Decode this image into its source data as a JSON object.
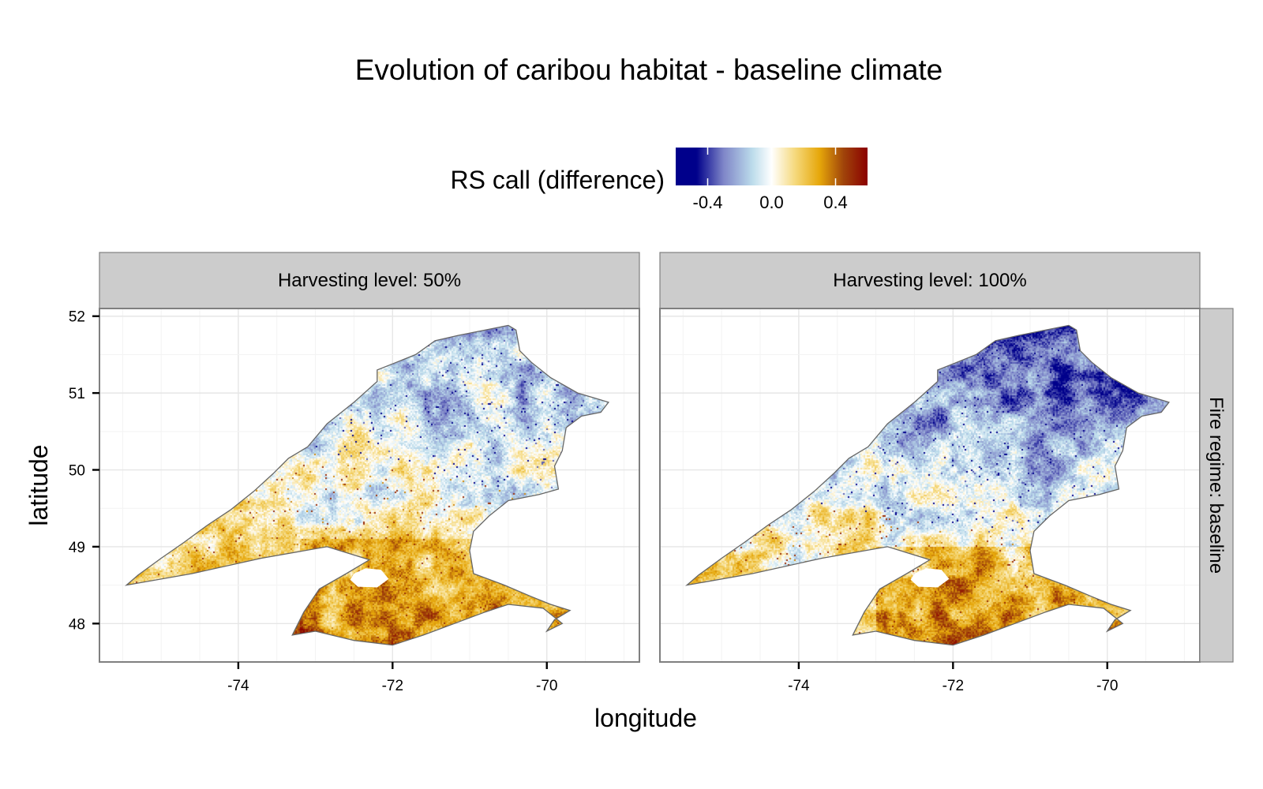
{
  "title": "Evolution of caribou habitat - baseline climate",
  "legend": {
    "title": "RS call (difference)",
    "ticks": [
      -0.4,
      0.0,
      0.4
    ],
    "tick_labels": [
      "-0.4",
      "0.0",
      "0.4"
    ],
    "range": [
      -0.6,
      0.6
    ],
    "stops": [
      {
        "v": -0.6,
        "color": "#00008b"
      },
      {
        "v": -0.47,
        "color": "#00008b"
      },
      {
        "v": -0.3,
        "color": "#7f86c8"
      },
      {
        "v": -0.12,
        "color": "#bcdceb"
      },
      {
        "v": 0.0,
        "color": "#ffffff"
      },
      {
        "v": 0.15,
        "color": "#f5d87a"
      },
      {
        "v": 0.3,
        "color": "#e6a70a"
      },
      {
        "v": 0.45,
        "color": "#a0440a"
      },
      {
        "v": 0.6,
        "color": "#8b0000"
      }
    ]
  },
  "axes": {
    "xlabel": "longitude",
    "ylabel": "latitude",
    "xlim": [
      -75.8,
      -68.8
    ],
    "ylim": [
      47.5,
      52.1
    ],
    "x_ticks": [
      -74,
      -72,
      -70
    ],
    "x_tick_labels": [
      "-74",
      "-72",
      "-70"
    ],
    "y_ticks": [
      48,
      49,
      50,
      51,
      52
    ],
    "y_tick_labels": [
      "48",
      "49",
      "50",
      "51",
      "52"
    ]
  },
  "facets": {
    "columns": [
      "Harvesting level: 50%",
      "Harvesting level: 100%"
    ],
    "row": "Fire regime: baseline"
  },
  "region_outline": [
    [
      -75.45,
      48.5
    ],
    [
      -75.3,
      48.63
    ],
    [
      -75.0,
      48.85
    ],
    [
      -74.7,
      49.06
    ],
    [
      -74.4,
      49.28
    ],
    [
      -74.1,
      49.48
    ],
    [
      -73.8,
      49.72
    ],
    [
      -73.55,
      49.95
    ],
    [
      -73.35,
      50.15
    ],
    [
      -73.1,
      50.3
    ],
    [
      -72.85,
      50.6
    ],
    [
      -72.5,
      50.88
    ],
    [
      -72.2,
      51.15
    ],
    [
      -72.2,
      51.3
    ],
    [
      -71.95,
      51.4
    ],
    [
      -71.7,
      51.5
    ],
    [
      -71.45,
      51.68
    ],
    [
      -71.15,
      51.75
    ],
    [
      -70.9,
      51.8
    ],
    [
      -70.5,
      51.88
    ],
    [
      -70.4,
      51.82
    ],
    [
      -70.35,
      51.55
    ],
    [
      -70.2,
      51.4
    ],
    [
      -69.95,
      51.2
    ],
    [
      -69.6,
      51.0
    ],
    [
      -69.2,
      50.88
    ],
    [
      -69.3,
      50.75
    ],
    [
      -69.55,
      50.7
    ],
    [
      -69.75,
      50.55
    ],
    [
      -69.8,
      50.25
    ],
    [
      -69.9,
      50.05
    ],
    [
      -69.85,
      49.75
    ],
    [
      -70.1,
      49.68
    ],
    [
      -70.5,
      49.6
    ],
    [
      -70.75,
      49.4
    ],
    [
      -70.95,
      49.2
    ],
    [
      -71.0,
      48.95
    ],
    [
      -70.95,
      48.65
    ],
    [
      -70.55,
      48.5
    ],
    [
      -70.2,
      48.35
    ],
    [
      -69.95,
      48.25
    ],
    [
      -69.7,
      48.17
    ],
    [
      -69.9,
      48.05
    ],
    [
      -70.0,
      47.9
    ],
    [
      -69.8,
      48.0
    ],
    [
      -70.05,
      48.2
    ],
    [
      -70.5,
      48.25
    ],
    [
      -70.8,
      48.15
    ],
    [
      -71.2,
      48.0
    ],
    [
      -71.6,
      47.85
    ],
    [
      -72.0,
      47.72
    ],
    [
      -72.5,
      47.78
    ],
    [
      -73.0,
      47.9
    ],
    [
      -73.3,
      47.85
    ],
    [
      -73.15,
      48.15
    ],
    [
      -72.95,
      48.45
    ],
    [
      -72.6,
      48.65
    ],
    [
      -72.3,
      48.83
    ],
    [
      -72.85,
      49.0
    ],
    [
      -73.7,
      48.85
    ],
    [
      -74.6,
      48.65
    ],
    [
      -75.45,
      48.5
    ]
  ],
  "lake_outline": [
    [
      -72.5,
      48.65
    ],
    [
      -72.35,
      48.72
    ],
    [
      -72.15,
      48.7
    ],
    [
      -72.05,
      48.58
    ],
    [
      -72.2,
      48.47
    ],
    [
      -72.45,
      48.48
    ],
    [
      -72.55,
      48.57
    ],
    [
      -72.5,
      48.65
    ]
  ],
  "pattern_seeds": [
    17,
    91
  ]
}
